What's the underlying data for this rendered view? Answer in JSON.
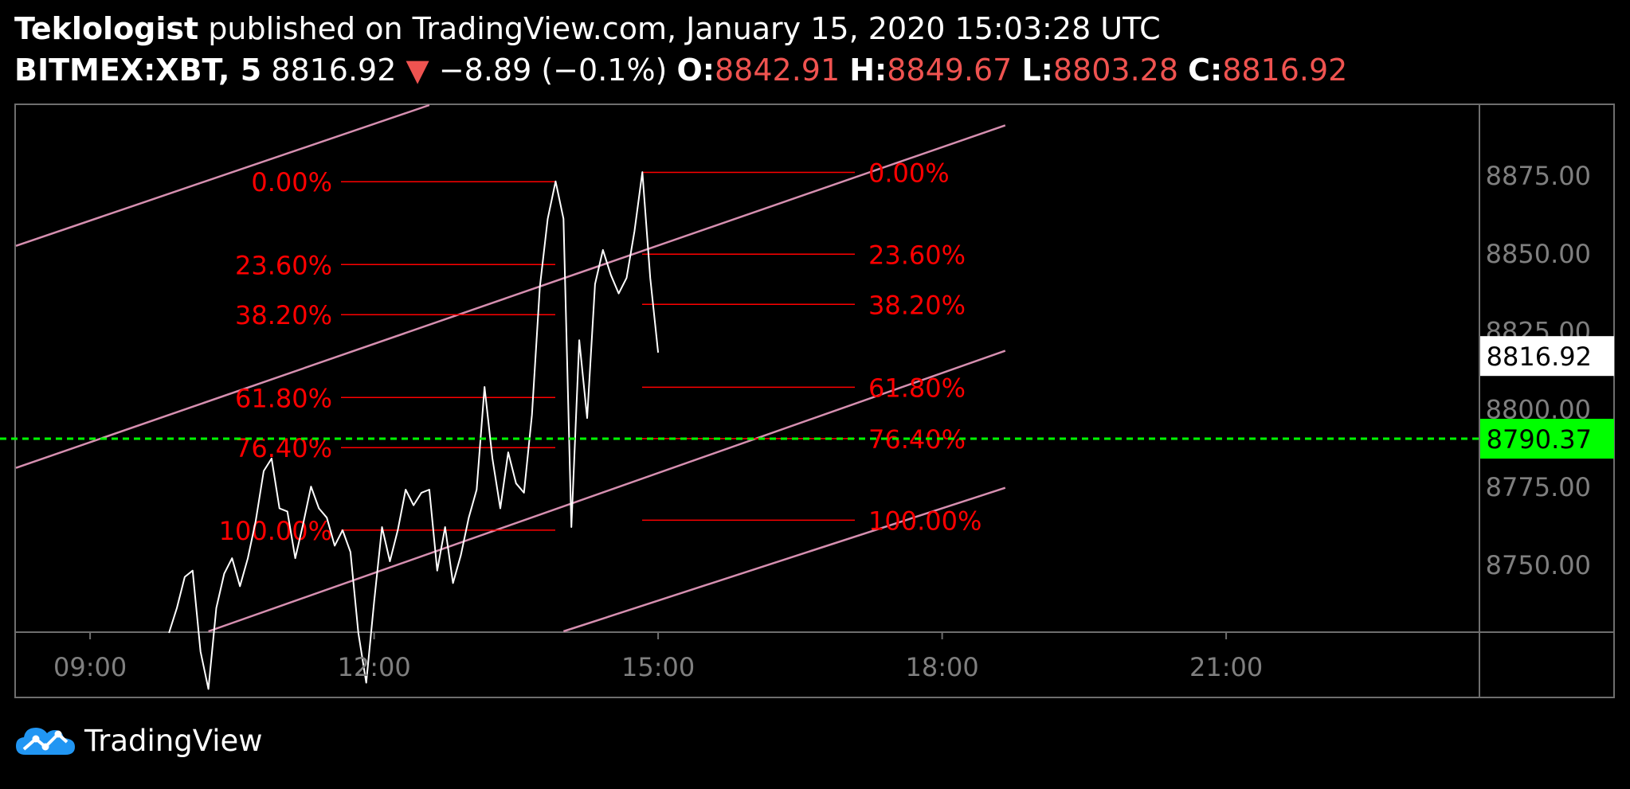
{
  "header": {
    "author": "Teklologist",
    "published_text": "published on TradingView.com, January 15, 2020 15:03:28 UTC",
    "symbol": "BITMEX:XBT, 5",
    "last_price": "8816.92",
    "change_arrow": "▼",
    "change": "−8.89 (−0.1%)",
    "open_label": "O:",
    "open": "8842.91",
    "high_label": "H:",
    "high": "8849.67",
    "low_label": "L:",
    "low": "8803.28",
    "close_label": "C:",
    "close": "8816.92"
  },
  "footer": {
    "brand": "TradingView"
  },
  "colors": {
    "price_line": "#ffffff",
    "fib": "#ff0000",
    "channel": "#d68fb0",
    "horizontal": "#00ff00",
    "axis_text": "#7f7f7f",
    "border": "#6e6e6e"
  },
  "chart_data": {
    "type": "line",
    "xlabel": "",
    "ylabel": "",
    "x_ticks": [
      "09:00",
      "12:00",
      "15:00",
      "18:00",
      "21:00"
    ],
    "y_ticks": [
      "8875.00",
      "8850.00",
      "8825.00",
      "8800.00",
      "8775.00",
      "8750.00"
    ],
    "ylim": [
      8728.5,
      8897.5
    ],
    "xlim": [
      "08:13",
      "23:40"
    ],
    "price_label": "8816.92",
    "horizontal_line": {
      "value": 8790.37,
      "label": "8790.37"
    },
    "series": [
      {
        "x": [
          "09:50",
          "09:55",
          "10:00",
          "10:05",
          "10:10",
          "10:15",
          "10:20",
          "10:25",
          "10:30",
          "10:35",
          "10:40",
          "10:45",
          "10:50",
          "10:55",
          "11:00",
          "11:05",
          "11:10",
          "11:15",
          "11:20",
          "11:25",
          "11:30",
          "11:35",
          "11:40",
          "11:45",
          "11:50",
          "11:55",
          "12:00",
          "12:05",
          "12:10",
          "12:15",
          "12:20",
          "12:25",
          "12:30",
          "12:35",
          "12:40",
          "12:45",
          "12:50",
          "12:55",
          "13:00",
          "13:05",
          "13:10",
          "13:15",
          "13:20",
          "13:25",
          "13:30",
          "13:35",
          "13:40",
          "13:45",
          "13:50",
          "13:55",
          "14:00",
          "14:05",
          "14:10",
          "14:15",
          "14:20",
          "14:25",
          "14:30",
          "14:35",
          "14:40",
          "14:45",
          "14:50",
          "14:55",
          "15:00"
        ],
        "values": [
          8728,
          8736,
          8746,
          8748,
          8722,
          8710,
          8736,
          8747,
          8752,
          8743,
          8752,
          8764,
          8780,
          8784,
          8768,
          8767,
          8752,
          8763,
          8775,
          8768,
          8765,
          8756,
          8761,
          8754,
          8728,
          8712,
          8738,
          8762,
          8751,
          8761,
          8774,
          8769,
          8773,
          8774,
          8748,
          8762,
          8744,
          8753,
          8765,
          8774,
          8807,
          8784,
          8768,
          8786,
          8776,
          8773,
          8798,
          8839,
          8861,
          8873,
          8861,
          8762,
          8822,
          8797,
          8840,
          8851,
          8843,
          8837,
          8842,
          8857,
          8876,
          8842,
          8818
        ]
      }
    ],
    "fib_left": [
      {
        "label": "0.00%",
        "value": 8872.9
      },
      {
        "label": "23.60%",
        "value": 8846.3
      },
      {
        "label": "38.20%",
        "value": 8830.2
      },
      {
        "label": "61.80%",
        "value": 8803.6
      },
      {
        "label": "76.40%",
        "value": 8787.5
      },
      {
        "label": "100.00%",
        "value": 8761.0
      }
    ],
    "fib_right": [
      {
        "label": "0.00%",
        "value": 8875.9
      },
      {
        "label": "23.60%",
        "value": 8849.6
      },
      {
        "label": "38.20%",
        "value": 8833.5
      },
      {
        "label": "61.80%",
        "value": 8806.9
      },
      {
        "label": "76.40%",
        "value": 8790.4
      },
      {
        "label": "100.00%",
        "value": 8764.2
      }
    ],
    "channel_lines": [
      {
        "x1": "08:13",
        "y1": 8852.3,
        "x2": "12:35",
        "y2": 8897.5
      },
      {
        "x1": "08:13",
        "y1": 8781.0,
        "x2": "18:40",
        "y2": 8891.0
      },
      {
        "x1": "10:15",
        "y1": 8728.5,
        "x2": "18:40",
        "y2": 8818.6
      },
      {
        "x1": "14:00",
        "y1": 8728.5,
        "x2": "18:40",
        "y2": 8774.6
      }
    ]
  }
}
